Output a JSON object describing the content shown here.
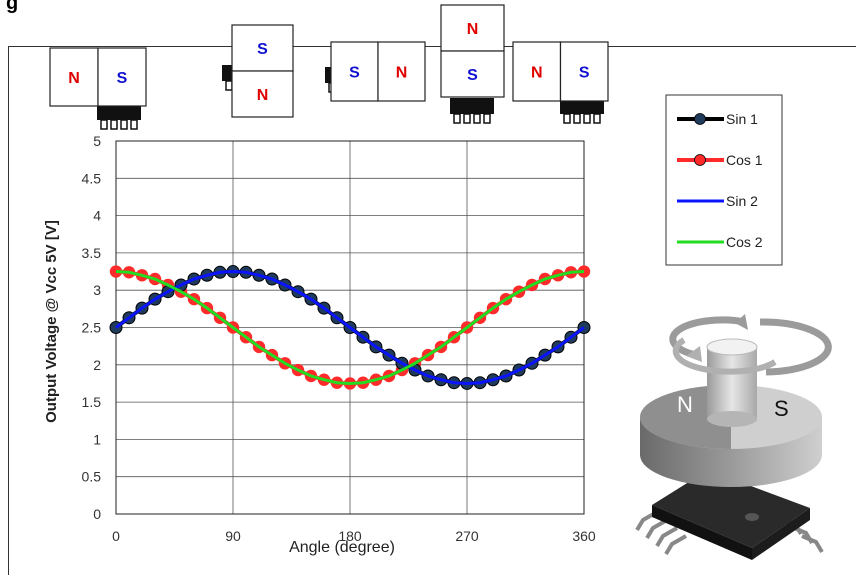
{
  "heading": "g",
  "colors": {
    "sin1_line": "#000000",
    "sin1_marker_fill": "#1f3a5a",
    "cos1": "#ff2a2a",
    "sin2": "#0a14ff",
    "cos2": "#22dd22",
    "magnet_n_text": "#e00000",
    "magnet_s_text": "#1010d0"
  },
  "magnet_positions": [
    {
      "left": "N",
      "right": "S",
      "orientation": "horizontal"
    },
    {
      "top": "S",
      "bottom": "N",
      "orientation": "vertical"
    },
    {
      "left": "S",
      "right": "N",
      "orientation": "horizontal"
    },
    {
      "top": "N",
      "bottom": "S",
      "orientation": "vertical"
    },
    {
      "left": "N",
      "right": "S",
      "orientation": "horizontal"
    }
  ],
  "illustration": {
    "north_label": "N",
    "south_label": "S"
  },
  "chart_data": {
    "type": "line",
    "title": "",
    "xlabel": "Angle (degree)",
    "ylabel": "Output Voltage @ Vcc 5V [V]",
    "xlim": [
      0,
      360
    ],
    "ylim": [
      0,
      5
    ],
    "xticks": [
      0,
      90,
      180,
      270,
      360
    ],
    "xtick_labels": [
      "0",
      "90",
      "180",
      "270",
      "360"
    ],
    "yticks": [
      0,
      0.5,
      1,
      1.5,
      2,
      2.5,
      3,
      3.5,
      4,
      4.5,
      5
    ],
    "ytick_labels": [
      "0",
      "0.5",
      "1",
      "1.5",
      "2",
      "2.5",
      "3",
      "3.5",
      "4",
      "4.5",
      "5"
    ],
    "grid": true,
    "legend_position": "top-right",
    "x": [
      0,
      10,
      20,
      30,
      40,
      50,
      60,
      70,
      80,
      90,
      100,
      110,
      120,
      130,
      140,
      150,
      160,
      170,
      180,
      190,
      200,
      210,
      220,
      230,
      240,
      250,
      260,
      270,
      280,
      290,
      300,
      310,
      320,
      330,
      340,
      350,
      360
    ],
    "series": [
      {
        "name": "Sin 1",
        "style": "line-marker",
        "values": [
          2.5,
          2.63,
          2.76,
          2.88,
          2.98,
          3.07,
          3.15,
          3.2,
          3.24,
          3.25,
          3.24,
          3.2,
          3.15,
          3.07,
          2.98,
          2.88,
          2.76,
          2.63,
          2.5,
          2.37,
          2.24,
          2.13,
          2.02,
          1.93,
          1.85,
          1.8,
          1.76,
          1.75,
          1.76,
          1.8,
          1.85,
          1.93,
          2.02,
          2.13,
          2.24,
          2.37,
          2.5
        ]
      },
      {
        "name": "Cos 1",
        "style": "line-marker",
        "values": [
          3.25,
          3.24,
          3.2,
          3.15,
          3.07,
          2.98,
          2.88,
          2.76,
          2.63,
          2.5,
          2.37,
          2.24,
          2.13,
          2.02,
          1.93,
          1.85,
          1.8,
          1.76,
          1.75,
          1.76,
          1.8,
          1.85,
          1.93,
          2.02,
          2.13,
          2.24,
          2.37,
          2.5,
          2.63,
          2.76,
          2.88,
          2.98,
          3.07,
          3.15,
          3.2,
          3.24,
          3.25
        ]
      },
      {
        "name": "Sin 2",
        "style": "line",
        "values": [
          2.5,
          2.63,
          2.76,
          2.88,
          2.98,
          3.07,
          3.15,
          3.2,
          3.24,
          3.25,
          3.24,
          3.2,
          3.15,
          3.07,
          2.98,
          2.88,
          2.76,
          2.63,
          2.5,
          2.37,
          2.24,
          2.13,
          2.02,
          1.93,
          1.85,
          1.8,
          1.76,
          1.75,
          1.76,
          1.8,
          1.85,
          1.93,
          2.02,
          2.13,
          2.24,
          2.37,
          2.5
        ]
      },
      {
        "name": "Cos 2",
        "style": "line",
        "values": [
          3.25,
          3.24,
          3.2,
          3.15,
          3.07,
          2.98,
          2.88,
          2.76,
          2.63,
          2.5,
          2.37,
          2.24,
          2.13,
          2.02,
          1.93,
          1.85,
          1.8,
          1.76,
          1.75,
          1.76,
          1.8,
          1.85,
          1.93,
          2.02,
          2.13,
          2.24,
          2.37,
          2.5,
          2.63,
          2.76,
          2.88,
          2.98,
          3.07,
          3.15,
          3.2,
          3.24,
          3.25
        ]
      }
    ]
  }
}
